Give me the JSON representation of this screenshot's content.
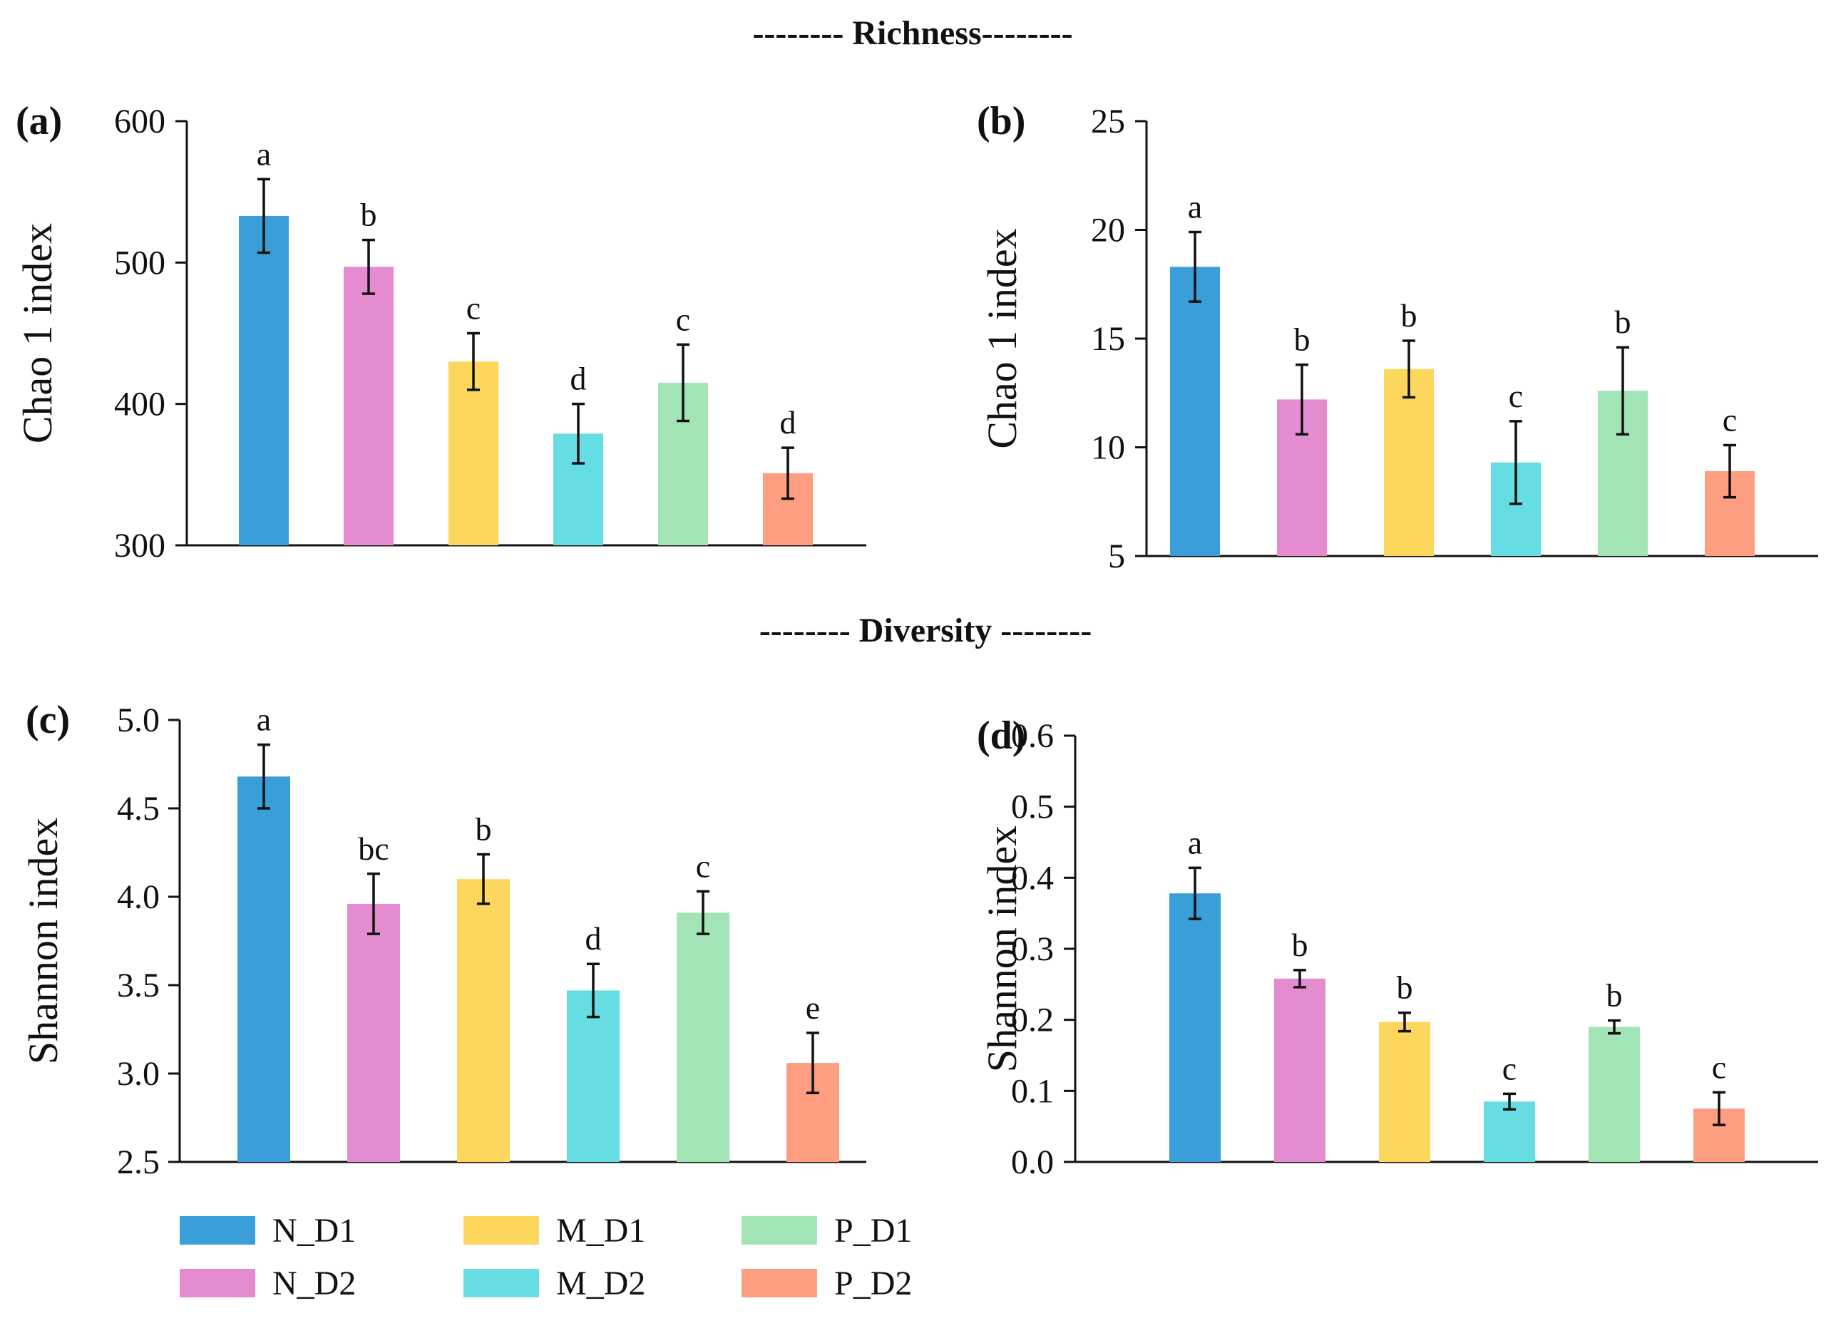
{
  "headings": {
    "richness": "-------- Richness--------",
    "diversity": "-------- Diversity --------"
  },
  "groups": [
    "N_D1",
    "N_D2",
    "M_D1",
    "M_D2",
    "P_D1",
    "P_D2"
  ],
  "colors": {
    "N_D1": "#3a9fd8",
    "N_D2": "#e48ccf",
    "M_D1": "#fdd65e",
    "M_D2": "#66dde2",
    "P_D1": "#a3e4b6",
    "P_D2": "#fd9e80"
  },
  "legend": {
    "items": [
      {
        "label": "N_D1",
        "color_key": "N_D1"
      },
      {
        "label": "N_D2",
        "color_key": "N_D2"
      },
      {
        "label": "M_D1",
        "color_key": "M_D1"
      },
      {
        "label": "M_D2",
        "color_key": "M_D2"
      },
      {
        "label": "P_D1",
        "color_key": "P_D1"
      },
      {
        "label": "P_D2",
        "color_key": "P_D2"
      }
    ]
  },
  "chart_data": [
    {
      "id": "a",
      "type": "bar",
      "panel_label": "(a)",
      "ylabel": "Chao 1 index",
      "ylim": [
        300,
        600
      ],
      "yticks": [
        300,
        400,
        500,
        600
      ],
      "ytick_labels": [
        "300",
        "400",
        "500",
        "600"
      ],
      "categories": [
        "N_D1",
        "N_D2",
        "M_D1",
        "M_D2",
        "P_D1",
        "P_D2"
      ],
      "values": [
        533,
        497,
        430,
        379,
        415,
        351
      ],
      "errors": [
        26,
        19,
        20,
        21,
        27,
        18
      ],
      "letters": [
        "a",
        "b",
        "c",
        "d",
        "c",
        "d"
      ]
    },
    {
      "id": "b",
      "type": "bar",
      "panel_label": "(b)",
      "ylabel": "Chao 1 index",
      "ylim": [
        5,
        25
      ],
      "yticks": [
        5,
        10,
        15,
        20,
        25
      ],
      "ytick_labels": [
        "5",
        "10",
        "15",
        "20",
        "25"
      ],
      "categories": [
        "N_D1",
        "N_D2",
        "M_D1",
        "M_D2",
        "P_D1",
        "P_D2"
      ],
      "values": [
        18.3,
        12.2,
        13.6,
        9.3,
        12.6,
        8.9
      ],
      "errors": [
        1.6,
        1.6,
        1.3,
        1.9,
        2.0,
        1.2
      ],
      "letters": [
        "a",
        "b",
        "b",
        "c",
        "b",
        "c"
      ]
    },
    {
      "id": "c",
      "type": "bar",
      "panel_label": "(c)",
      "ylabel": "Shannon index",
      "ylim": [
        2.5,
        5.0
      ],
      "yticks": [
        2.5,
        3.0,
        3.5,
        4.0,
        4.5,
        5.0
      ],
      "ytick_labels": [
        "2.5",
        "3.0",
        "3.5",
        "4.0",
        "4.5",
        "5.0"
      ],
      "categories": [
        "N_D1",
        "N_D2",
        "M_D1",
        "M_D2",
        "P_D1",
        "P_D2"
      ],
      "values": [
        4.68,
        3.96,
        4.1,
        3.47,
        3.91,
        3.06
      ],
      "errors": [
        0.18,
        0.17,
        0.14,
        0.15,
        0.12,
        0.17
      ],
      "letters": [
        "a",
        "bc",
        "b",
        "d",
        "c",
        "e"
      ]
    },
    {
      "id": "d",
      "type": "bar",
      "panel_label": "(d)",
      "ylabel": "Shannon index",
      "ylim": [
        0.0,
        0.6
      ],
      "yticks": [
        0.0,
        0.1,
        0.2,
        0.3,
        0.4,
        0.5,
        0.6
      ],
      "ytick_labels": [
        "0.0",
        "0.1",
        "0.2",
        "0.3",
        "0.4",
        "0.5",
        "0.6"
      ],
      "categories": [
        "N_D1",
        "N_D2",
        "M_D1",
        "M_D2",
        "P_D1",
        "P_D2"
      ],
      "values": [
        0.378,
        0.258,
        0.197,
        0.085,
        0.19,
        0.075
      ],
      "errors": [
        0.036,
        0.012,
        0.013,
        0.011,
        0.009,
        0.023
      ],
      "letters": [
        "a",
        "b",
        "b",
        "c",
        "b",
        "c"
      ]
    }
  ]
}
